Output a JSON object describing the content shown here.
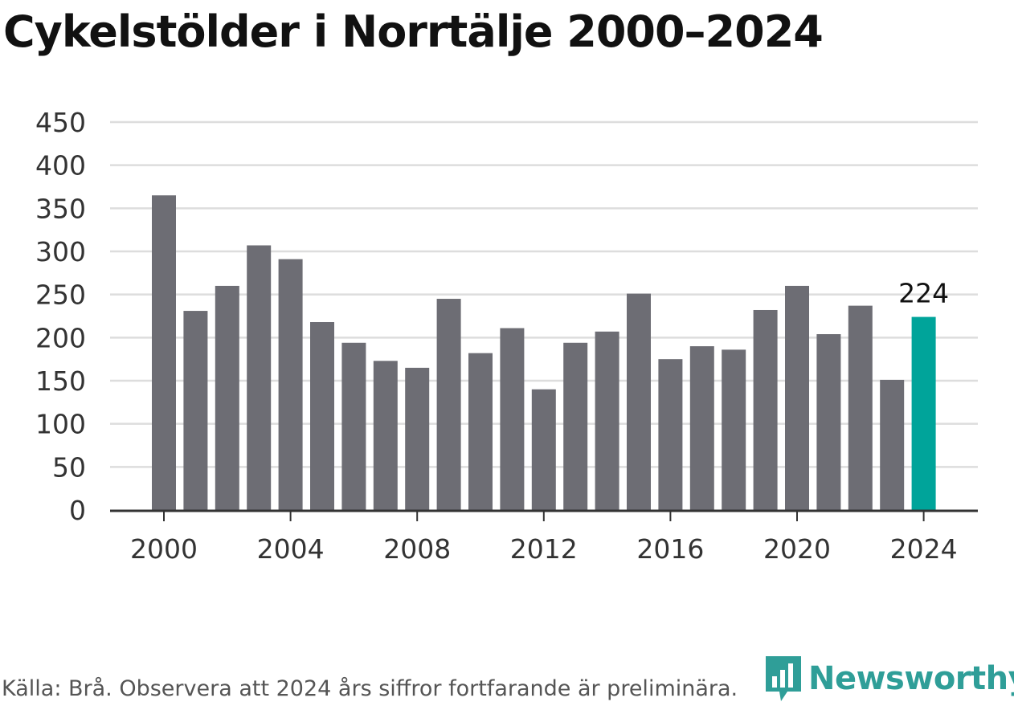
{
  "header": {
    "title": "Cykelstölder i Norrtälje 2000–2024"
  },
  "footer": {
    "source": "Källa: Brå. Observera att 2024 års siffror fortfarande är preliminära."
  },
  "logo": {
    "text": "Newsworthy",
    "icon": "newsworthy-chart-bubble-icon",
    "color": "#2f9e98"
  },
  "chart_data": {
    "type": "bar",
    "title": "Cykelstölder i Norrtälje 2000–2024",
    "xlabel": "",
    "ylabel": "",
    "categories": [
      "2000",
      "2001",
      "2002",
      "2003",
      "2004",
      "2005",
      "2006",
      "2007",
      "2008",
      "2009",
      "2010",
      "2011",
      "2012",
      "2013",
      "2014",
      "2015",
      "2016",
      "2017",
      "2018",
      "2019",
      "2020",
      "2021",
      "2022",
      "2023",
      "2024"
    ],
    "values": [
      365,
      231,
      260,
      307,
      291,
      218,
      194,
      173,
      165,
      245,
      182,
      211,
      140,
      194,
      207,
      251,
      175,
      190,
      186,
      232,
      260,
      204,
      237,
      151,
      224
    ],
    "ylim": [
      0,
      450
    ],
    "yticks": [
      0,
      50,
      100,
      150,
      200,
      250,
      300,
      350,
      400,
      450
    ],
    "xticks": [
      "2000",
      "2004",
      "2008",
      "2012",
      "2016",
      "2020",
      "2024"
    ],
    "grid": true,
    "bar_color": "#6d6d74",
    "highlight": {
      "category": "2024",
      "color": "#00a49a",
      "label": "224"
    }
  }
}
